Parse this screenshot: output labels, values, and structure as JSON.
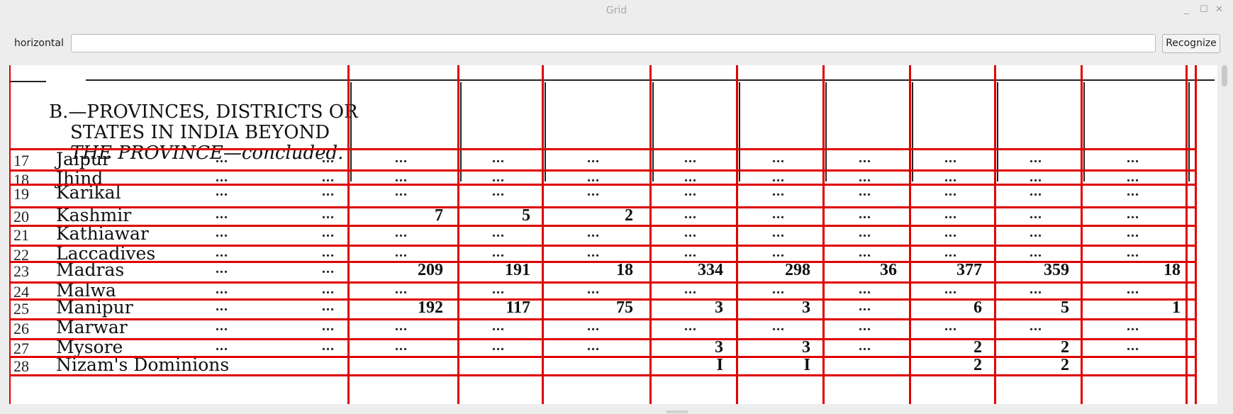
{
  "window": {
    "title": "Grid",
    "controls": {
      "minimize": "_",
      "maximize": "☐",
      "close": "✕"
    }
  },
  "toolbar": {
    "label": "horizontal",
    "input_value": "",
    "button_label": "Recognize"
  },
  "grid_color": "#e00000",
  "document": {
    "header_lines": [
      "B.—PROVINCES, DISTRICTS OR",
      "STATES IN INDIA BEYOND",
      "THE PROVINCE—concluded."
    ],
    "rows": [
      {
        "no": "17",
        "name": "Jaipur",
        "c1": "...",
        "c2": "...",
        "values": [
          "...",
          "...",
          "...",
          "...",
          "...",
          "...",
          "...",
          "...",
          "..."
        ]
      },
      {
        "no": "18",
        "name": "Jhind",
        "c1": "...",
        "c2": "...",
        "values": [
          "...",
          "...",
          "...",
          "...",
          "...",
          "...",
          "...",
          "...",
          "..."
        ]
      },
      {
        "no": "19",
        "name": "Karikal",
        "c1": "...",
        "c2": "...",
        "values": [
          "...",
          "...",
          "...",
          "...",
          "...",
          "...",
          "...",
          "...",
          "..."
        ]
      },
      {
        "no": "20",
        "name": "Kashmir",
        "c1": "...",
        "c2": "...",
        "values": [
          "7",
          "5",
          "2",
          "...",
          "...",
          "...",
          "...",
          "...",
          "..."
        ]
      },
      {
        "no": "21",
        "name": "Kathiawar",
        "c1": "...",
        "c2": "...",
        "values": [
          "...",
          "...",
          "...",
          "...",
          "...",
          "...",
          "...",
          "...",
          "..."
        ]
      },
      {
        "no": "22",
        "name": "Laccadives",
        "c1": "...",
        "c2": "...",
        "values": [
          "...",
          "...",
          "...",
          "...",
          "...",
          "...",
          "...",
          "...",
          "..."
        ]
      },
      {
        "no": "23",
        "name": "Madras",
        "c1": "...",
        "c2": "...",
        "values": [
          "209",
          "191",
          "18",
          "334",
          "298",
          "36",
          "377",
          "359",
          "18"
        ]
      },
      {
        "no": "24",
        "name": "Malwa",
        "c1": "...",
        "c2": "...",
        "values": [
          "...",
          "...",
          "...",
          "...",
          "...",
          "...",
          "...",
          "...",
          "..."
        ]
      },
      {
        "no": "25",
        "name": "Manipur",
        "c1": "...",
        "c2": "...",
        "values": [
          "192",
          "117",
          "75",
          "3",
          "3",
          "...",
          "6",
          "5",
          "1"
        ]
      },
      {
        "no": "26",
        "name": "Marwar",
        "c1": "...",
        "c2": "...",
        "values": [
          "...",
          "...",
          "...",
          "...",
          "...",
          "...",
          "...",
          "...",
          "..."
        ]
      },
      {
        "no": "27",
        "name": "Mysore",
        "c1": "...",
        "c2": "...",
        "values": [
          "...",
          "...",
          "...",
          "3",
          "3",
          "...",
          "2",
          "2",
          "..."
        ]
      },
      {
        "no": "28",
        "name": "Nizam's Dominions",
        "c1": "",
        "c2": "",
        "values": [
          "",
          "",
          "",
          "I",
          "I",
          "",
          "2",
          "2",
          ""
        ]
      }
    ]
  }
}
